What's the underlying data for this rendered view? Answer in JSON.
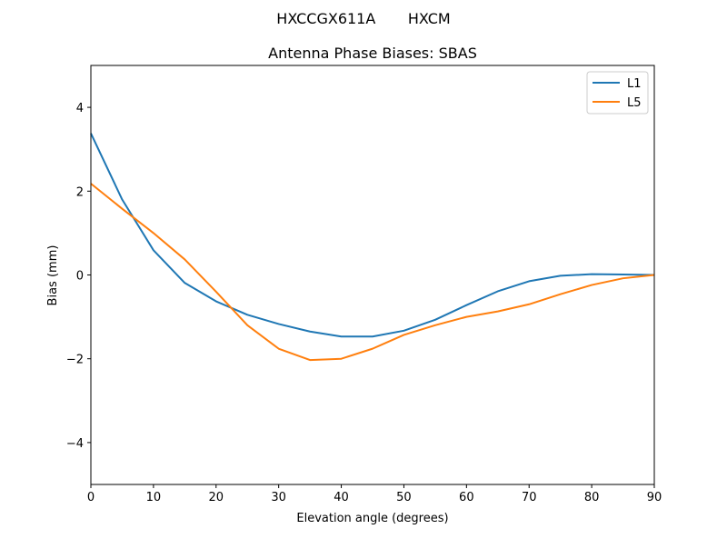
{
  "chart_data": {
    "type": "line",
    "suptitle": "HXCCGX611A       HXCM",
    "title": "Antenna Phase Biases: SBAS",
    "xlabel": "Elevation angle (degrees)",
    "ylabel": "Bias (mm)",
    "xlim": [
      0,
      90
    ],
    "ylim": [
      -5,
      5
    ],
    "xticks": [
      0,
      10,
      20,
      30,
      40,
      50,
      60,
      70,
      80,
      90
    ],
    "yticks": [
      -4,
      -2,
      0,
      2,
      4
    ],
    "ytick_labels": [
      "−4",
      "−2",
      "0",
      "2",
      "4"
    ],
    "grid": false,
    "legend_position": "top-right",
    "x": [
      0,
      5,
      10,
      15,
      20,
      25,
      30,
      35,
      40,
      45,
      50,
      55,
      60,
      65,
      70,
      75,
      80,
      85,
      90
    ],
    "series": [
      {
        "name": "L1",
        "color": "#1f77b4",
        "values": [
          3.38,
          1.8,
          0.59,
          -0.19,
          -0.63,
          -0.95,
          -1.17,
          -1.35,
          -1.47,
          -1.47,
          -1.33,
          -1.07,
          -0.72,
          -0.39,
          -0.15,
          -0.02,
          0.02,
          0.01,
          0.0
        ]
      },
      {
        "name": "L5",
        "color": "#ff7f0e",
        "values": [
          2.18,
          1.58,
          1.0,
          0.37,
          -0.4,
          -1.2,
          -1.76,
          -2.03,
          -2.0,
          -1.76,
          -1.43,
          -1.2,
          -1.0,
          -0.87,
          -0.7,
          -0.46,
          -0.24,
          -0.08,
          0.0
        ]
      }
    ]
  }
}
